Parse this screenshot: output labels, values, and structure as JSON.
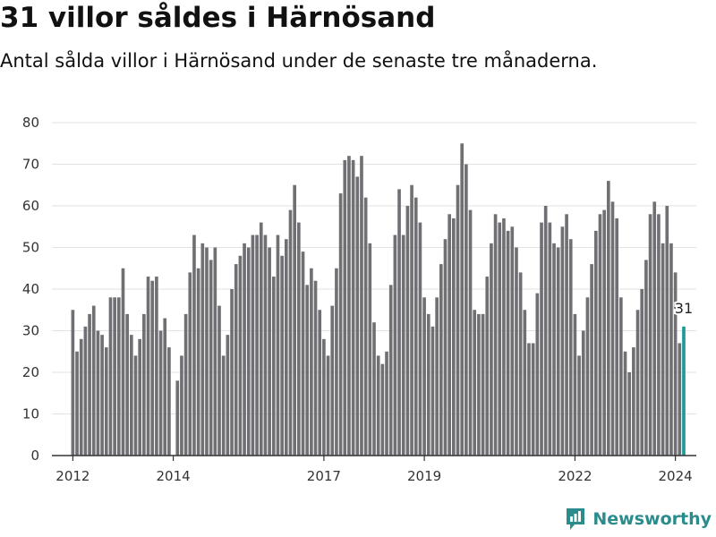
{
  "title": "31 villor såldes i Härnösand",
  "subtitle": "Antal sålda villor i Härnösand under de senaste tre månaderna.",
  "brand": {
    "name": "Newsworthy",
    "color": "#2a8c8c",
    "icon": "bar-chart-logo-icon"
  },
  "colors": {
    "bar": "#707074",
    "highlight": "#1a9a9a",
    "grid": "#e2e2e2",
    "axis": "#333333"
  },
  "chart_data": {
    "type": "bar",
    "title": "",
    "xlabel": "",
    "ylabel": "",
    "ylim": [
      0,
      80
    ],
    "yticks": [
      0,
      10,
      20,
      30,
      40,
      50,
      60,
      70,
      80
    ],
    "xlim": [
      "2011-08",
      "2024-06"
    ],
    "x_tick_labels": [
      {
        "label": "2012",
        "month": "2012-01"
      },
      {
        "label": "2014",
        "month": "2014-01"
      },
      {
        "label": "2017",
        "month": "2017-01"
      },
      {
        "label": "2019",
        "month": "2019-01"
      },
      {
        "label": "2022",
        "month": "2022-01"
      },
      {
        "label": "2024",
        "month": "2024-01"
      }
    ],
    "grid": true,
    "start_month": "2012-01",
    "values": [
      35,
      25,
      28,
      31,
      34,
      36,
      30,
      29,
      26,
      38,
      38,
      38,
      45,
      34,
      29,
      24,
      28,
      34,
      43,
      42,
      43,
      30,
      33,
      26,
      null,
      18,
      24,
      34,
      44,
      53,
      45,
      51,
      50,
      47,
      50,
      36,
      24,
      29,
      40,
      46,
      48,
      51,
      50,
      53,
      53,
      56,
      53,
      50,
      43,
      53,
      48,
      52,
      59,
      65,
      56,
      49,
      41,
      45,
      42,
      35,
      28,
      24,
      36,
      45,
      63,
      71,
      72,
      71,
      67,
      72,
      62,
      51,
      32,
      24,
      22,
      25,
      41,
      53,
      64,
      53,
      60,
      65,
      62,
      56,
      38,
      34,
      31,
      38,
      46,
      52,
      58,
      57,
      65,
      75,
      70,
      59,
      35,
      34,
      34,
      43,
      51,
      58,
      56,
      57,
      54,
      55,
      50,
      44,
      35,
      27,
      27,
      39,
      56,
      60,
      56,
      51,
      50,
      55,
      58,
      52,
      34,
      24,
      30,
      38,
      46,
      54,
      58,
      59,
      66,
      61,
      57,
      38,
      25,
      20,
      26,
      35,
      40,
      47,
      58,
      61,
      58,
      51,
      60,
      51,
      44,
      27,
      31
    ],
    "highlight": {
      "month": "2024-03",
      "value": 31,
      "label": "31"
    }
  }
}
